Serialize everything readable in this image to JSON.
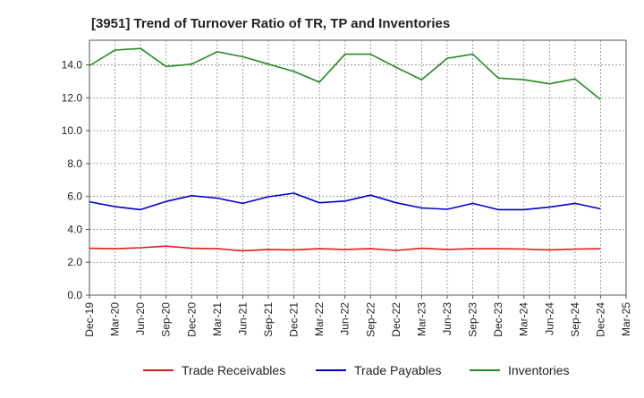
{
  "chart_data": {
    "type": "line",
    "title": "[3951]  Trend of Turnover Ratio of TR, TP and Inventories",
    "xlabel": "",
    "ylabel": "",
    "ylim": [
      0,
      15.5
    ],
    "yticks": [
      0.0,
      2.0,
      4.0,
      6.0,
      8.0,
      10.0,
      12.0,
      14.0
    ],
    "ytick_labels": [
      "0.0",
      "2.0",
      "4.0",
      "6.0",
      "8.0",
      "10.0",
      "12.0",
      "14.0"
    ],
    "x_tick_labels": [
      "Dec-19",
      "Mar-20",
      "Jun-20",
      "Sep-20",
      "Dec-20",
      "Mar-21",
      "Jun-21",
      "Sep-21",
      "Dec-21",
      "Mar-22",
      "Jun-22",
      "Sep-22",
      "Dec-22",
      "Mar-23",
      "Jun-23",
      "Sep-23",
      "Dec-23",
      "Mar-24",
      "Jun-24",
      "Sep-24",
      "Dec-24",
      "Mar-25"
    ],
    "categories": [
      "Dec-19",
      "Mar-20",
      "Jun-20",
      "Sep-20",
      "Dec-20",
      "Mar-21",
      "Jun-21",
      "Sep-21",
      "Dec-21",
      "Mar-22",
      "Jun-22",
      "Sep-22",
      "Dec-22",
      "Mar-23",
      "Jun-23",
      "Sep-23",
      "Dec-23",
      "Mar-24",
      "Jun-24",
      "Sep-24",
      "Dec-24"
    ],
    "grid": true,
    "legend_position": "bottom",
    "series": [
      {
        "name": "Trade Receivables",
        "color": "#e31a1c",
        "values": [
          2.85,
          2.82,
          2.88,
          2.98,
          2.85,
          2.82,
          2.7,
          2.78,
          2.75,
          2.82,
          2.78,
          2.82,
          2.72,
          2.85,
          2.78,
          2.82,
          2.82,
          2.8,
          2.75,
          2.8,
          2.82
        ]
      },
      {
        "name": "Trade Payables",
        "color": "#0000cc",
        "values": [
          5.68,
          5.38,
          5.2,
          5.7,
          6.05,
          5.9,
          5.58,
          5.98,
          6.2,
          5.62,
          5.72,
          6.08,
          5.62,
          5.3,
          5.22,
          5.58,
          5.2,
          5.2,
          5.35,
          5.58,
          5.25
        ]
      },
      {
        "name": "Inventories",
        "color": "#228b22",
        "values": [
          13.95,
          14.9,
          15.0,
          13.9,
          14.05,
          14.8,
          14.5,
          14.05,
          13.6,
          12.95,
          14.65,
          14.65,
          13.85,
          13.1,
          14.4,
          14.65,
          13.2,
          13.1,
          12.85,
          13.15,
          11.9
        ]
      }
    ]
  }
}
